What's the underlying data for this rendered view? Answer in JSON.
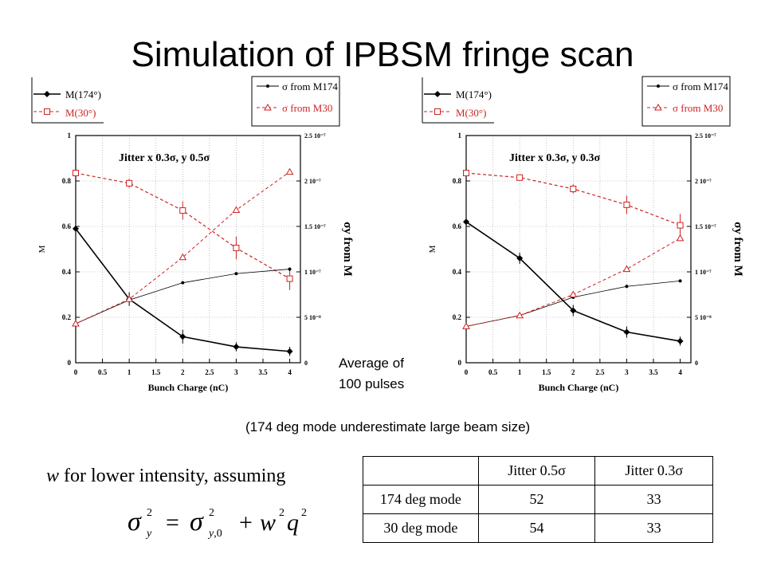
{
  "title": "Simulation of IPBSM fringe scan",
  "charts": [
    {
      "jitter_label": "Jitter x 0.3σ, y 0.5σ",
      "xlabel": "Bunch Charge (nC)",
      "ylabel_left": "M",
      "ylabel_right": "σy from M",
      "x_ticks": [
        "0",
        "0.5",
        "1",
        "1.5",
        "2",
        "2.5",
        "3",
        "3.5",
        "4"
      ],
      "left_ticks": [
        "0",
        "0.2",
        "0.4",
        "0.6",
        "0.8",
        "1"
      ],
      "right_ticks": [
        "0",
        "5 10⁻⁸",
        "1 10⁻⁷",
        "1.5 10⁻⁷",
        "2 10⁻⁷",
        "2.5 10⁻⁷"
      ],
      "legend_left": [
        "M(174°)",
        "M(30°)"
      ],
      "legend_right": [
        "σ from M174",
        "σ from M30"
      ]
    },
    {
      "jitter_label": "Jitter x 0.3σ, y 0.3σ",
      "xlabel": "Bunch Charge (nC)",
      "ylabel_left": "M",
      "ylabel_right": "σy from M",
      "x_ticks": [
        "0",
        "0.5",
        "1",
        "1.5",
        "2",
        "2.5",
        "3",
        "3.5",
        "4"
      ],
      "left_ticks": [
        "0",
        "0.2",
        "0.4",
        "0.6",
        "0.8",
        "1"
      ],
      "right_ticks": [
        "0",
        "5 10⁻⁸",
        "1 10⁻⁷",
        "1.5 10⁻⁷",
        "2 10⁻⁷",
        "2.5 10⁻⁷"
      ],
      "legend_left": [
        "M(174°)",
        "M(30°)"
      ],
      "legend_right": [
        "σ from M174",
        "σ from M30"
      ]
    }
  ],
  "annotation_avg": [
    "Average of",
    "100 pulses"
  ],
  "annotation_note": "(174 deg mode underestimate large beam size)",
  "w_label": "w for lower intensity, assuming",
  "table": {
    "header": [
      "",
      "Jitter 0.5σ",
      "Jitter 0.3σ"
    ],
    "rows": [
      [
        "174 deg mode",
        "52",
        "33"
      ],
      [
        "30 deg mode",
        "54",
        "33"
      ]
    ]
  },
  "colors": {
    "m174": "#000000",
    "m30": "#cc2222",
    "frame": "#000000"
  },
  "chart_data": [
    {
      "type": "line",
      "x": [
        0,
        1,
        2,
        3,
        4
      ],
      "xlim": [
        0,
        4.2
      ],
      "ylim_left": [
        0,
        1
      ],
      "ylim_right": [
        0,
        2.5e-07
      ],
      "series": [
        {
          "name": "M(174°)",
          "axis": "left",
          "values": [
            0.59,
            0.28,
            0.115,
            0.07,
            0.05
          ],
          "errors": [
            0,
            0.03,
            0.03,
            0.02,
            0.02
          ]
        },
        {
          "name": "M(30°)",
          "axis": "left",
          "values": [
            0.835,
            0.79,
            0.67,
            0.505,
            0.37
          ],
          "errors": [
            0,
            0.02,
            0.04,
            0.05,
            0.05
          ]
        },
        {
          "name": "σ from M174",
          "axis": "right",
          "values": [
            4.3e-08,
            6.9e-08,
            8.8e-08,
            9.8e-08,
            1.03e-07
          ]
        },
        {
          "name": "σ from M30",
          "axis": "right",
          "values": [
            4.3e-08,
            7e-08,
            1.16e-07,
            1.68e-07,
            2.1e-07
          ]
        }
      ]
    },
    {
      "type": "line",
      "x": [
        0,
        1,
        2,
        3,
        4
      ],
      "xlim": [
        0,
        4.2
      ],
      "ylim_left": [
        0,
        1
      ],
      "ylim_right": [
        0,
        2.5e-07
      ],
      "series": [
        {
          "name": "M(174°)",
          "axis": "left",
          "values": [
            0.62,
            0.46,
            0.23,
            0.135,
            0.095
          ],
          "errors": [
            0,
            0.025,
            0.025,
            0.025,
            0.02
          ]
        },
        {
          "name": "M(30°)",
          "axis": "left",
          "values": [
            0.835,
            0.815,
            0.765,
            0.695,
            0.605
          ],
          "errors": [
            0,
            0.01,
            0.02,
            0.04,
            0.05
          ]
        },
        {
          "name": "σ from M174",
          "axis": "right",
          "values": [
            4e-08,
            5.2e-08,
            7.2e-08,
            8.4e-08,
            9e-08
          ]
        },
        {
          "name": "σ from M30",
          "axis": "right",
          "values": [
            4e-08,
            5.2e-08,
            7.5e-08,
            1.03e-07,
            1.37e-07
          ]
        }
      ]
    }
  ]
}
